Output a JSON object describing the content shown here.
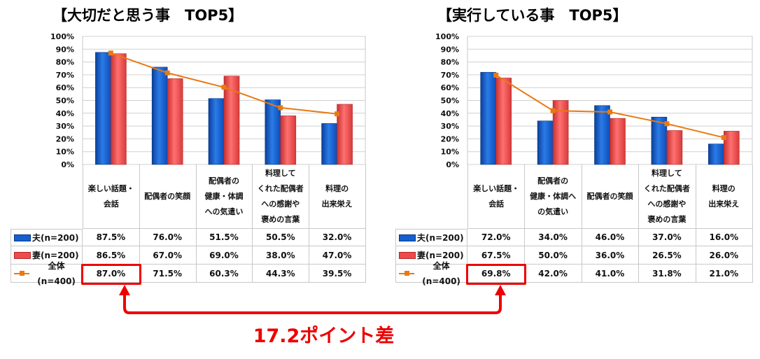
{
  "colors": {
    "husband": "#1560d0",
    "wife": "#f04a4a",
    "total": "#e87a10",
    "highlight": "#e00000"
  },
  "legend": [
    "夫(n=200)",
    "妻(n=200)",
    "全体(n=400)"
  ],
  "annotation": "17.2ポイント差",
  "chart_data": [
    {
      "type": "bar",
      "title": "【大切だと思う事　TOP5】",
      "categories": [
        "楽しい話題・\n会話",
        "配偶者の笑顔",
        "配偶者の\n健康・体調\nへの気遣い",
        "料理して\nくれた配偶者\nへの感謝や\n褒めの言葉",
        "料理の\n出来栄え"
      ],
      "yticks": [
        "0%",
        "10%",
        "20%",
        "30%",
        "40%",
        "50%",
        "60%",
        "70%",
        "80%",
        "90%",
        "100%"
      ],
      "ylim": [
        0,
        100
      ],
      "grid": true,
      "series": [
        {
          "name": "夫(n=200)",
          "kind": "bar",
          "values": [
            87.5,
            76.0,
            51.5,
            50.5,
            32.0
          ],
          "labels": [
            "87.5%",
            "76.0%",
            "51.5%",
            "50.5%",
            "32.0%"
          ]
        },
        {
          "name": "妻(n=200)",
          "kind": "bar",
          "values": [
            86.5,
            67.0,
            69.0,
            38.0,
            47.0
          ],
          "labels": [
            "86.5%",
            "67.0%",
            "69.0%",
            "38.0%",
            "47.0%"
          ]
        },
        {
          "name": "全体(n=400)",
          "kind": "line",
          "values": [
            87.0,
            71.5,
            60.3,
            44.3,
            39.5
          ],
          "labels": [
            "87.0%",
            "71.5%",
            "60.3%",
            "44.3%",
            "39.5%"
          ]
        }
      ]
    },
    {
      "type": "bar",
      "title": "【実行している事　TOP5】",
      "categories": [
        "楽しい話題・\n会話",
        "配偶者の\n健康・体調へ\nの気遣い",
        "配偶者の笑顔",
        "料理して\nくれた配偶者\nへの感謝や\n褒めの言葉",
        "料理の\n出来栄え"
      ],
      "yticks": [
        "0%",
        "10%",
        "20%",
        "30%",
        "40%",
        "50%",
        "60%",
        "70%",
        "80%",
        "90%",
        "100%"
      ],
      "ylim": [
        0,
        100
      ],
      "grid": true,
      "series": [
        {
          "name": "夫(n=200)",
          "kind": "bar",
          "values": [
            72.0,
            34.0,
            46.0,
            37.0,
            16.0
          ],
          "labels": [
            "72.0%",
            "34.0%",
            "46.0%",
            "37.0%",
            "16.0%"
          ]
        },
        {
          "name": "妻(n=200)",
          "kind": "bar",
          "values": [
            67.5,
            50.0,
            36.0,
            26.5,
            26.0
          ],
          "labels": [
            "67.5%",
            "50.0%",
            "36.0%",
            "26.5%",
            "26.0%"
          ]
        },
        {
          "name": "全体(n=400)",
          "kind": "line",
          "values": [
            69.8,
            42.0,
            41.0,
            31.8,
            21.0
          ],
          "labels": [
            "69.8%",
            "42.0%",
            "41.0%",
            "31.8%",
            "21.0%"
          ]
        }
      ]
    }
  ]
}
